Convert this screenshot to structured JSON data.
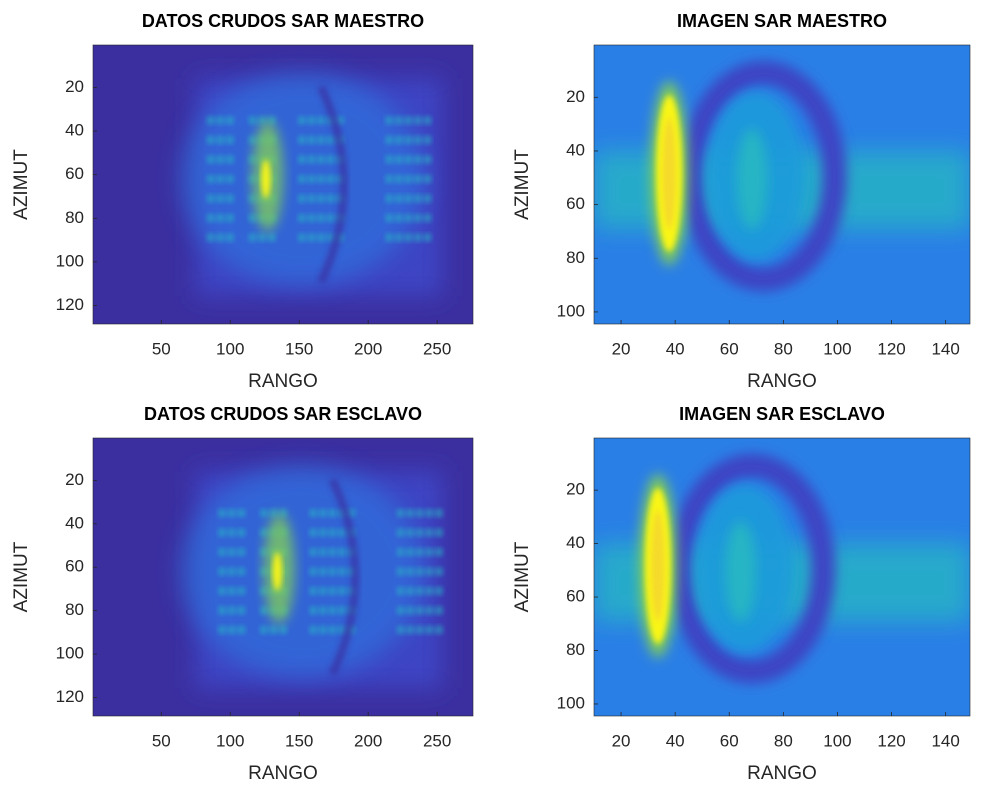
{
  "chart_data": [
    {
      "type": "heatmap",
      "title": "DATOS CRUDOS SAR MAESTRO",
      "xlabel": "RANGO",
      "ylabel": "AZIMUT",
      "xlim": [
        0.5,
        276
      ],
      "ylim": [
        0.5,
        128.5
      ],
      "xticks": [
        50,
        100,
        150,
        200,
        250
      ],
      "yticks": [
        20,
        40,
        60,
        80,
        100,
        120
      ],
      "y_reversed": true,
      "colormap": "parula"
    },
    {
      "type": "heatmap",
      "title": "IMAGEN SAR MAESTRO",
      "xlabel": "RANGO",
      "ylabel": "AZIMUT",
      "xlim": [
        10,
        149
      ],
      "ylim": [
        0.5,
        104.5
      ],
      "xticks": [
        20,
        40,
        60,
        80,
        100,
        120,
        140
      ],
      "yticks": [
        20,
        40,
        60,
        80,
        100
      ],
      "y_reversed": true,
      "colormap": "parula"
    },
    {
      "type": "heatmap",
      "title": "DATOS CRUDOS SAR ESCLAVO",
      "xlabel": "RANGO",
      "ylabel": "AZIMUT",
      "xlim": [
        0.5,
        276
      ],
      "ylim": [
        0.5,
        128.5
      ],
      "xticks": [
        50,
        100,
        150,
        200,
        250
      ],
      "yticks": [
        20,
        40,
        60,
        80,
        100,
        120
      ],
      "y_reversed": true,
      "colormap": "parula"
    },
    {
      "type": "heatmap",
      "title": "IMAGEN SAR ESCLAVO",
      "xlabel": "RANGO",
      "ylabel": "AZIMUT",
      "xlim": [
        10,
        149
      ],
      "ylim": [
        0.5,
        104.5
      ],
      "xticks": [
        20,
        40,
        60,
        80,
        100,
        120,
        140
      ],
      "yticks": [
        20,
        40,
        60,
        80,
        100
      ],
      "y_reversed": true,
      "colormap": "parula"
    }
  ]
}
